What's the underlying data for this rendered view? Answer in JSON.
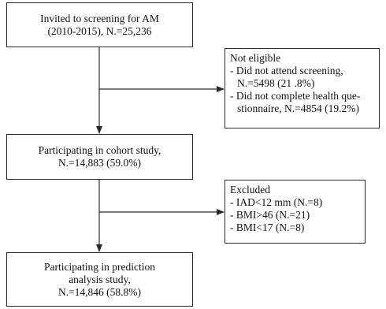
{
  "boxes": {
    "invited": {
      "lines": [
        "Invited to screening for AM",
        "(2010-2015), N.=25,236"
      ]
    },
    "cohort": {
      "lines": [
        "Participating in cohort study,",
        "N.=14,883 (59.0%)"
      ]
    },
    "prediction": {
      "lines": [
        "Participating in prediction",
        "analysis study,",
        "N.=14,846 (58.8%)"
      ]
    },
    "not_eligible": {
      "title": "Not eligible",
      "items": [
        [
          "- Did not attend screening,",
          "N.=5498 (21 .8%)"
        ],
        [
          "- Did not complete health que-",
          "stionnaire, N.=4854 (19.2%)"
        ]
      ]
    },
    "excluded": {
      "title": "Excluded",
      "items": [
        "- IAD<12 mm (N.=8)",
        "- BMI>46 (N.=21)",
        "- BMI<17 (N.=8)"
      ]
    }
  }
}
